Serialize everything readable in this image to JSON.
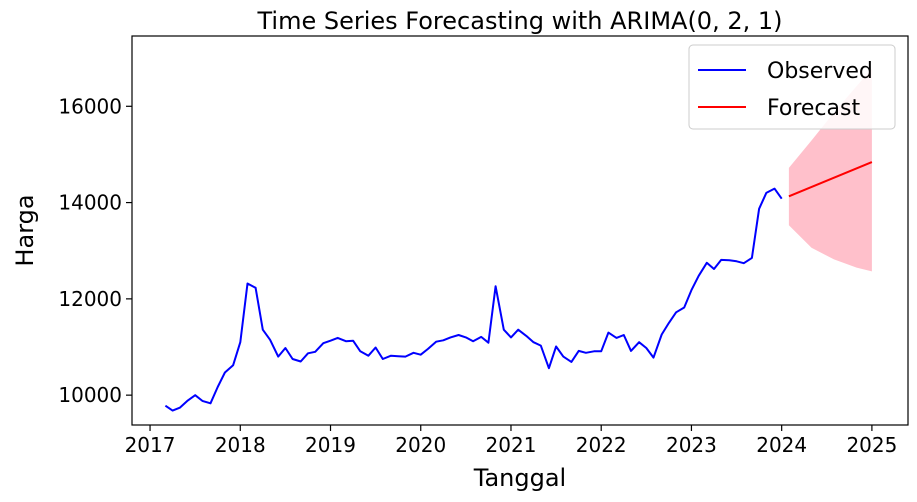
{
  "chart_data": {
    "type": "line",
    "title": "Time Series Forecasting with ARIMA(0, 2, 1)",
    "xlabel": "Tanggal",
    "ylabel": "Harga",
    "xlim": [
      2016.8,
      2025.4
    ],
    "ylim": [
      9380,
      17460
    ],
    "x_ticks": [
      2017,
      2018,
      2019,
      2020,
      2021,
      2022,
      2023,
      2024,
      2025
    ],
    "x_tick_labels": [
      "2017",
      "2018",
      "2019",
      "2020",
      "2021",
      "2022",
      "2023",
      "2024",
      "2025"
    ],
    "y_ticks": [
      10000,
      12000,
      14000,
      16000
    ],
    "y_tick_labels": [
      "10000",
      "12000",
      "14000",
      "16000"
    ],
    "grid": false,
    "legend_position": "top-right",
    "series": [
      {
        "name": "Observed",
        "color": "#0000ff",
        "x": [
          2017.17,
          2017.25,
          2017.33,
          2017.42,
          2017.5,
          2017.58,
          2017.67,
          2017.75,
          2017.83,
          2017.92,
          2018.0,
          2018.08,
          2018.17,
          2018.25,
          2018.33,
          2018.42,
          2018.5,
          2018.58,
          2018.67,
          2018.75,
          2018.83,
          2018.92,
          2019.0,
          2019.08,
          2019.17,
          2019.25,
          2019.33,
          2019.42,
          2019.5,
          2019.58,
          2019.67,
          2019.75,
          2019.83,
          2019.92,
          2020.0,
          2020.08,
          2020.17,
          2020.25,
          2020.33,
          2020.42,
          2020.5,
          2020.58,
          2020.67,
          2020.75,
          2020.83,
          2020.92,
          2021.0,
          2021.08,
          2021.17,
          2021.25,
          2021.33,
          2021.42,
          2021.5,
          2021.58,
          2021.67,
          2021.75,
          2021.83,
          2021.92,
          2022.0,
          2022.08,
          2022.17,
          2022.25,
          2022.33,
          2022.42,
          2022.5,
          2022.58,
          2022.67,
          2022.75,
          2022.83,
          2022.92,
          2023.0,
          2023.08,
          2023.17,
          2023.25,
          2023.33,
          2023.42,
          2023.5,
          2023.58,
          2023.67,
          2023.75,
          2023.83,
          2023.92,
          2024.0
        ],
        "y": [
          9780,
          9680,
          9740,
          9890,
          10000,
          9880,
          9830,
          10170,
          10470,
          10620,
          11100,
          12320,
          12230,
          11360,
          11150,
          10800,
          10980,
          10750,
          10700,
          10870,
          10900,
          11080,
          11130,
          11190,
          11120,
          11130,
          10910,
          10820,
          10990,
          10750,
          10820,
          10810,
          10800,
          10880,
          10840,
          10960,
          11110,
          11140,
          11200,
          11250,
          11200,
          11120,
          11210,
          11090,
          12260,
          11360,
          11200,
          11360,
          11230,
          11100,
          11030,
          10560,
          11010,
          10800,
          10690,
          10920,
          10880,
          10910,
          10910,
          11300,
          11190,
          11250,
          10920,
          11100,
          10980,
          10780,
          11260,
          11500,
          11720,
          11820,
          12180,
          12480,
          12750,
          12620,
          12810,
          12800,
          12780,
          12740,
          12850,
          13870,
          14200,
          14290,
          14080
        ]
      },
      {
        "name": "Forecast",
        "color": "#ff0000",
        "x": [
          2024.08,
          2025.0
        ],
        "y": [
          14130,
          14840
        ]
      }
    ],
    "confidence_interval": {
      "color": "#ffc0cb",
      "x": [
        2024.08,
        2024.33,
        2024.58,
        2024.83,
        2025.0
      ],
      "lower": [
        13530,
        13060,
        12820,
        12650,
        12570
      ],
      "upper": [
        14720,
        15290,
        15870,
        16420,
        16780
      ]
    }
  }
}
